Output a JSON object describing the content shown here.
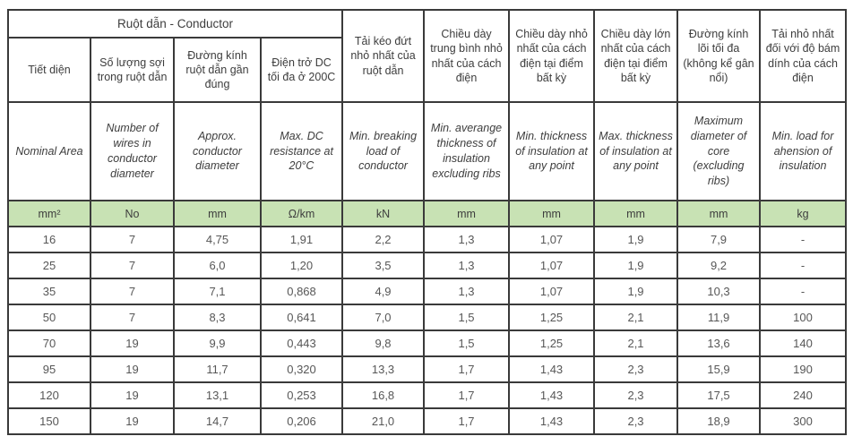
{
  "table": {
    "group_header": "Ruột dẫn - Conductor",
    "columns_vi": [
      "Tiết diện",
      "Số lượng sợi trong ruột dẫn",
      "Đường kính ruột dẫn gần đúng",
      "Điện trở DC tối đa ở 200C",
      "Tải kéo đứt nhỏ nhất của ruột dẫn",
      "Chiều dày trung bình nhỏ nhất của cách điện",
      "Chiều dày nhỏ nhất của cách điện tại điểm bất kỳ",
      "Chiều dày lớn nhất của cách điện tại điểm bất kỳ",
      "Đường kính lõi tối đa (không kể gân nổi)",
      "Tải nhỏ nhất đối với độ bám dính của cách điện"
    ],
    "columns_en": [
      "Nominal Area",
      "Number of wires in conductor diameter",
      "Approx. conductor diameter",
      "Max. DC resistance at 20°C",
      "Min. breaking load of conductor",
      "Min. averange thickness of insulation excluding ribs",
      "Min. thickness of insulation at any point",
      "Max. thickness of insulation at any point",
      "Maximum diameter of core (excluding ribs)",
      "Min. load for ahension of insulation"
    ],
    "units": [
      "mm²",
      "No",
      "mm",
      "Ω/km",
      "kN",
      "mm",
      "mm",
      "mm",
      "mm",
      "kg"
    ],
    "rows": [
      [
        "16",
        "7",
        "4,75",
        "1,91",
        "2,2",
        "1,3",
        "1,07",
        "1,9",
        "7,9",
        "-"
      ],
      [
        "25",
        "7",
        "6,0",
        "1,20",
        "3,5",
        "1,3",
        "1,07",
        "1,9",
        "9,2",
        "-"
      ],
      [
        "35",
        "7",
        "7,1",
        "0,868",
        "4,9",
        "1,3",
        "1,07",
        "1,9",
        "10,3",
        "-"
      ],
      [
        "50",
        "7",
        "8,3",
        "0,641",
        "7,0",
        "1,5",
        "1,25",
        "2,1",
        "11,9",
        "100"
      ],
      [
        "70",
        "19",
        "9,9",
        "0,443",
        "9,8",
        "1,5",
        "1,25",
        "2,1",
        "13,6",
        "140"
      ],
      [
        "95",
        "19",
        "11,7",
        "0,320",
        "13,3",
        "1,7",
        "1,43",
        "2,3",
        "15,9",
        "190"
      ],
      [
        "120",
        "19",
        "13,1",
        "0,253",
        "16,8",
        "1,7",
        "1,43",
        "2,3",
        "17,5",
        "240"
      ],
      [
        "150",
        "19",
        "14,7",
        "0,206",
        "21,0",
        "1,7",
        "1,43",
        "2,3",
        "18,9",
        "300"
      ]
    ],
    "colors": {
      "units_row_bg": "#c8e2b4",
      "border": "#3a3a3a",
      "header_text": "#3d3d3d",
      "data_text": "#575757"
    }
  }
}
